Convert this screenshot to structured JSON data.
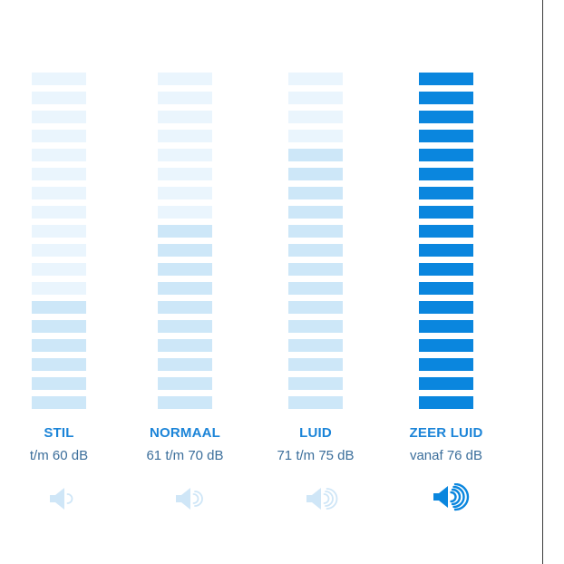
{
  "levels": [
    {
      "name": "STIL",
      "range": "t/m 60 dB",
      "active_segments": 6,
      "total_segments": 18,
      "icon": "speaker-1-wave-icon",
      "waves": 1,
      "active": false
    },
    {
      "name": "NORMAAL",
      "range": "61 t/m 70 dB",
      "active_segments": 10,
      "total_segments": 18,
      "icon": "speaker-2-waves-icon",
      "waves": 2,
      "active": false
    },
    {
      "name": "LUID",
      "range": "71 t/m 75 dB",
      "active_segments": 14,
      "total_segments": 18,
      "icon": "speaker-3-waves-icon",
      "waves": 3,
      "active": false
    },
    {
      "name": "ZEER LUID",
      "range": "vanaf 76 dB",
      "active_segments": 18,
      "total_segments": 18,
      "icon": "speaker-4-waves-icon",
      "waves": 4,
      "active": true
    }
  ],
  "colors": {
    "segment_inactive": "#eaf5fd",
    "segment_filled": "#cde7f8",
    "segment_full": "#0a86de",
    "speaker_inactive": "#cfe6f7",
    "speaker_active": "#0a86de",
    "label": "#1b84d8",
    "range_text": "#3b6e9b"
  }
}
